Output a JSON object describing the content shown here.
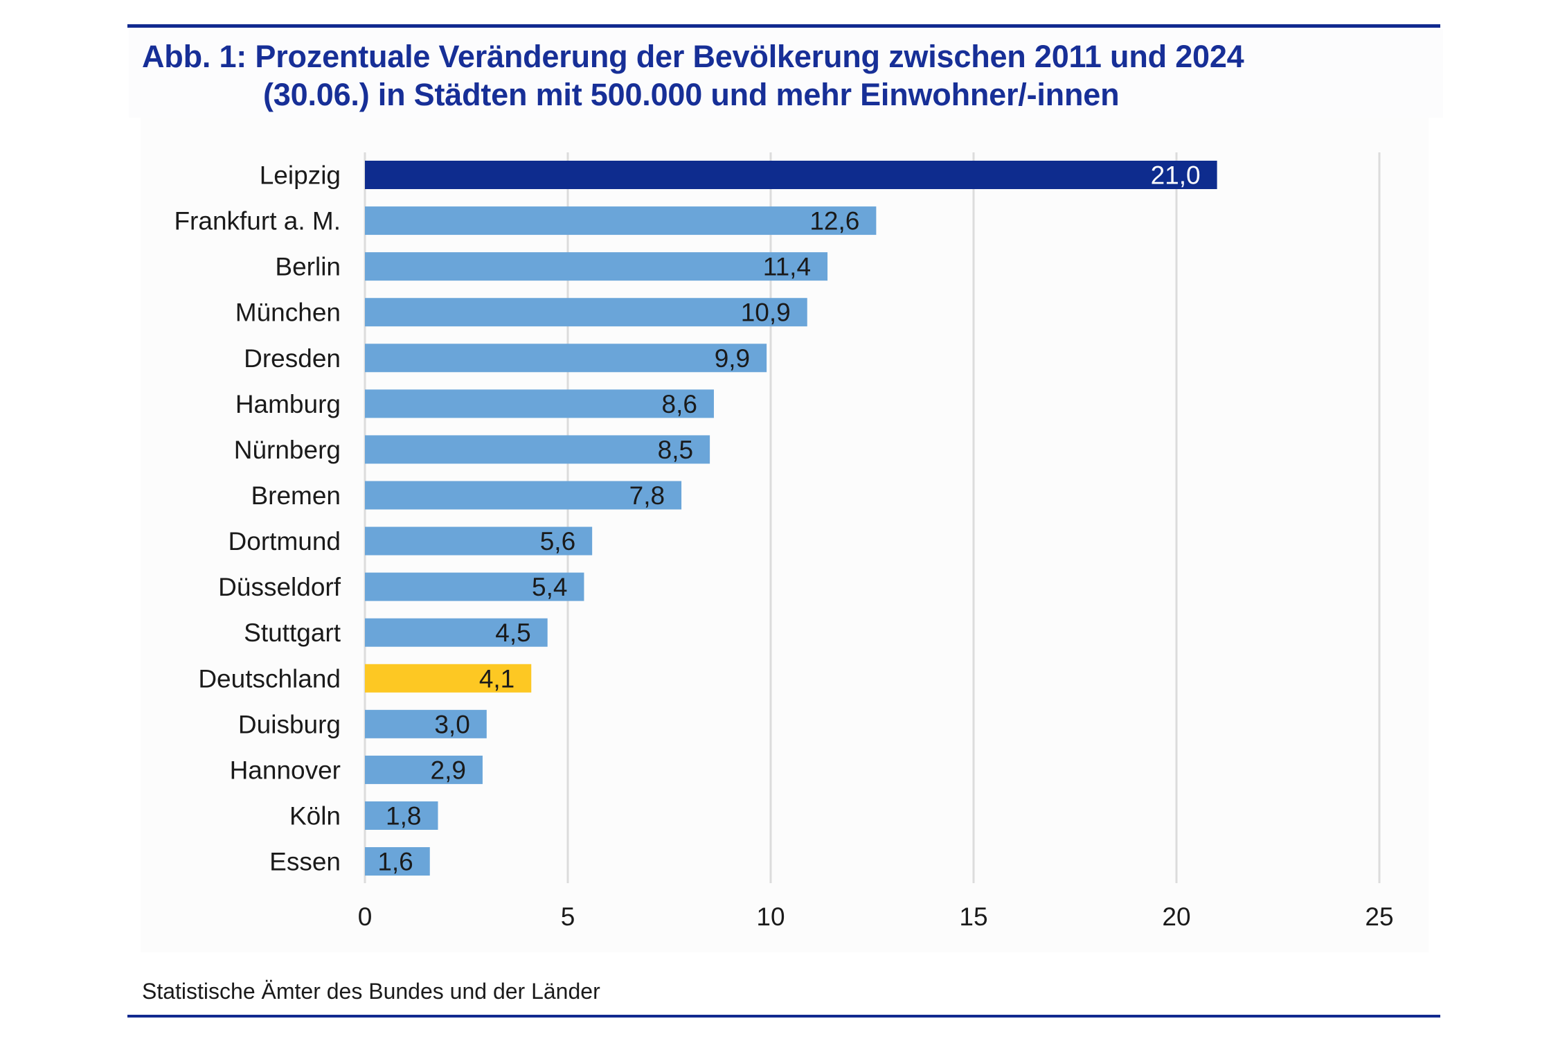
{
  "figure": {
    "title_line1": "Abb. 1: Prozentuale Veränderung der Bevölkerung zwischen 2011 und 2024",
    "title_line2": "(30.06.) in Städten mit 500.000 und mehr Einwohner/-innen",
    "source": "Statistische Ämter des Bundes und der Länder"
  },
  "colors": {
    "title": "#172f97",
    "rule": "#112a8f",
    "highlight_bar": "#0e2c8e",
    "default_bar": "#6aa5d9",
    "reference_bar": "#fdc823",
    "gridline": "#dcdcdc",
    "text": "#1a1a1a",
    "highlight_label": "#ffffff"
  },
  "chart_data": {
    "type": "bar",
    "orientation": "horizontal",
    "title": "Abb. 1: Prozentuale Veränderung der Bevölkerung zwischen 2011 und 2024 (30.06.) in Städten mit 500.000 und mehr Einwohner/-innen",
    "xlabel": "",
    "ylabel": "",
    "unit": "%",
    "xlim": [
      0,
      25
    ],
    "x_ticks": [
      0,
      5,
      10,
      15,
      20,
      25
    ],
    "x_tick_labels": [
      "0",
      "5",
      "10",
      "15",
      "20",
      "25"
    ],
    "grid": "vertical",
    "legend": "none",
    "categories": [
      "Leipzig",
      "Frankfurt a. M.",
      "Berlin",
      "München",
      "Dresden",
      "Hamburg",
      "Nürnberg",
      "Bremen",
      "Dortmund",
      "Düsseldorf",
      "Stuttgart",
      "Deutschland",
      "Duisburg",
      "Hannover",
      "Köln",
      "Essen"
    ],
    "values": [
      21.0,
      12.6,
      11.4,
      10.9,
      9.9,
      8.6,
      8.5,
      7.8,
      5.6,
      5.4,
      4.5,
      4.1,
      3.0,
      2.9,
      1.8,
      1.6
    ],
    "value_labels": [
      "21,0",
      "12,6",
      "11,4",
      "10,9",
      "9,9",
      "8,6",
      "8,5",
      "7,8",
      "5,6",
      "5,4",
      "4,5",
      "4,1",
      "3,0",
      "2,9",
      "1,8",
      "1,6"
    ],
    "bar_styles": [
      "highlight",
      "default",
      "default",
      "default",
      "default",
      "default",
      "default",
      "default",
      "default",
      "default",
      "default",
      "reference",
      "default",
      "default",
      "default",
      "default"
    ],
    "source": "Statistische Ämter des Bundes und der Länder"
  }
}
